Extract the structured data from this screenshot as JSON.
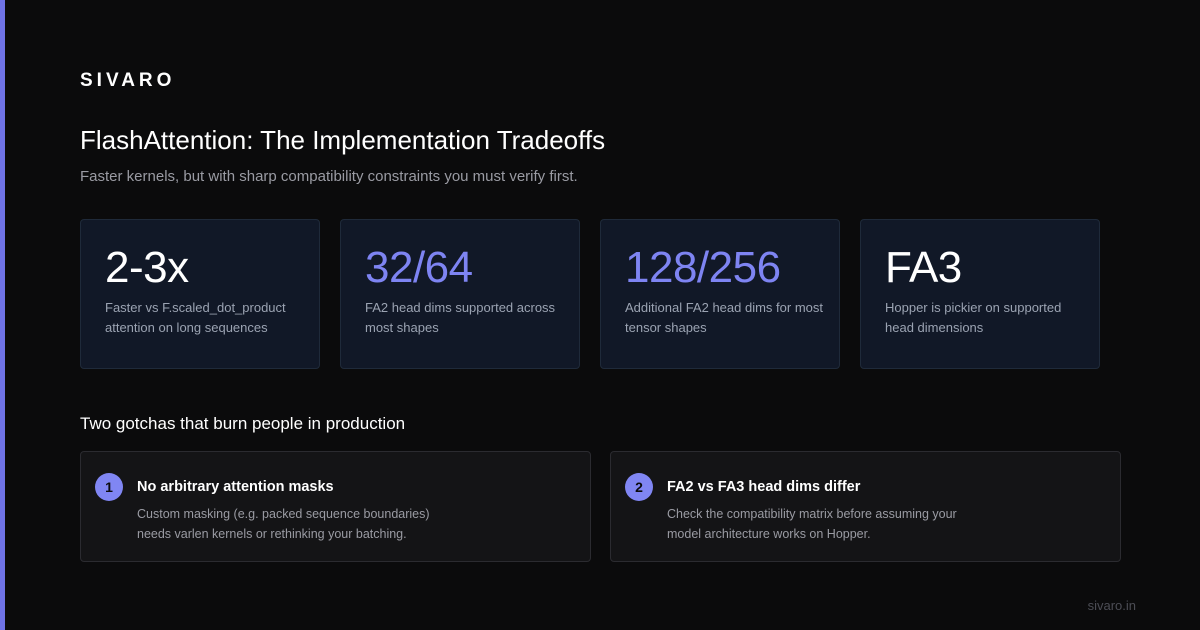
{
  "brand": "SIVARO",
  "title": "FlashAttention: The Implementation Tradeoffs",
  "subtitle": "Faster kernels, but with sharp compatibility constraints you must verify first.",
  "colors": {
    "accent": "#6f73e6",
    "value_white": "#ffffff",
    "value_purple": "#7e84f2",
    "card_bg": "#111827"
  },
  "stats": [
    {
      "value": "2-3x",
      "description": "Faster vs F.scaled_dot_product attention on long sequences",
      "color": "#ffffff"
    },
    {
      "value": "32/64",
      "description": "FA2 head dims supported across most shapes",
      "color": "#7e84f2"
    },
    {
      "value": "128/256",
      "description": "Additional FA2 head dims for most tensor shapes",
      "color": "#7e84f2"
    },
    {
      "value": "FA3",
      "description": "Hopper is pickier on supported head dimensions",
      "color": "#ffffff"
    }
  ],
  "section_heading": "Two gotchas that burn people in production",
  "gotchas": [
    {
      "number": "1",
      "title": "No arbitrary attention masks",
      "description": "Custom masking (e.g. packed sequence boundaries) needs varlen kernels or rethinking your batching."
    },
    {
      "number": "2",
      "title": "FA2 vs FA3 head dims differ",
      "description": "Check the compatibility matrix before assuming your model architecture works on Hopper."
    }
  ],
  "footer": "sivaro.in"
}
